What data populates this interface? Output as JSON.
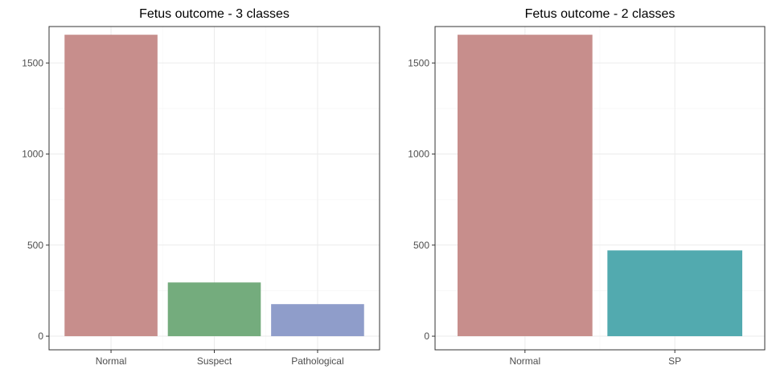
{
  "chart_data": [
    {
      "type": "bar",
      "title": "Fetus outcome - 3 classes",
      "xlabel": "",
      "ylabel": "",
      "categories": [
        "Normal",
        "Suspect",
        "Pathological"
      ],
      "values": [
        1655,
        295,
        176
      ],
      "colors": [
        "#C78E8C",
        "#74AC7D",
        "#8F9DCA"
      ],
      "ylim": [
        0,
        1700
      ],
      "yticks": [
        0,
        500,
        1000,
        1500
      ],
      "grid": true,
      "legend": "none"
    },
    {
      "type": "bar",
      "title": "Fetus outcome - 2 classes",
      "xlabel": "",
      "ylabel": "",
      "categories": [
        "Normal",
        "SP"
      ],
      "values": [
        1655,
        471
      ],
      "colors": [
        "#C78E8C",
        "#52AAAF"
      ],
      "ylim": [
        0,
        1700
      ],
      "yticks": [
        0,
        500,
        1000,
        1500
      ],
      "grid": true,
      "legend": "none"
    }
  ]
}
